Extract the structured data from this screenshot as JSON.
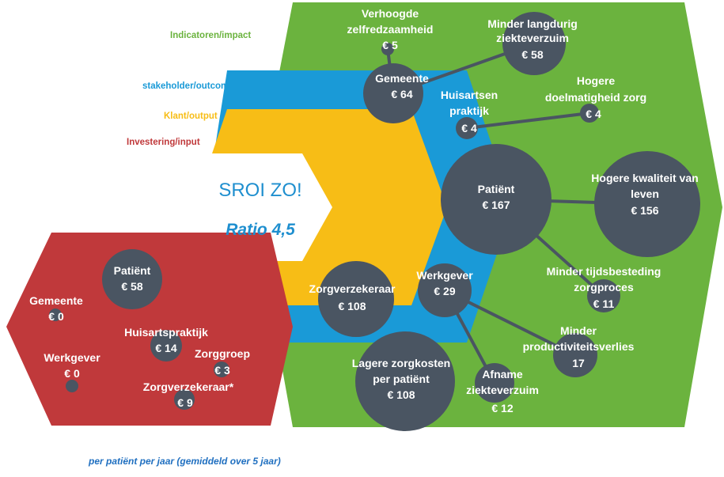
{
  "legend": {
    "impact": "Indicatoren/impact",
    "outcome": "stakeholder/outcome",
    "output": "Klant/output",
    "input": "Investering/input"
  },
  "center": {
    "title": "SROI ZO!",
    "ratio": "Ratio 4,5"
  },
  "footnote": "per patiënt per jaar (gemiddeld over 5 jaar)",
  "colors": {
    "impact_green": "#6bb33e",
    "outcome_blue": "#1a9ad7",
    "output_yellow": "#f7bd16",
    "input_red": "#c0393b",
    "circle_slate": "#4a5562"
  },
  "input": [
    {
      "name": "Patiënt",
      "value": "€ 58"
    },
    {
      "name": "Gemeente",
      "value": "€ 0"
    },
    {
      "name": "Huisartspraktijk",
      "value": "€ 14"
    },
    {
      "name": "Zorggroep",
      "value": "€ 3"
    },
    {
      "name": "Werkgever",
      "value": "€ 0"
    },
    {
      "name": "Zorgverzekeraar*",
      "value": "€ 9"
    }
  ],
  "stakeholders": [
    {
      "name": "Gemeente",
      "value": "€ 64"
    },
    {
      "name": "Huisartsen praktijk",
      "line1": "Huisartsen",
      "line2": "praktijk",
      "value": "€ 4"
    },
    {
      "name": "Patiënt",
      "value": "€ 167"
    },
    {
      "name": "Werkgever",
      "value": "€ 29"
    },
    {
      "name": "Zorgverzekeraar",
      "value": "€ 108"
    }
  ],
  "impacts": [
    {
      "line1": "Verhoogde",
      "line2": "zelfredzaamheid",
      "value": "€ 5"
    },
    {
      "line1": "Minder langdurig",
      "line2": "ziekteverzuim",
      "value": "€ 58"
    },
    {
      "line1": "Hogere",
      "line2": "doelmatigheid  zorg",
      "value": "€ 4"
    },
    {
      "line1": "Hogere kwaliteit van",
      "line2": "leven",
      "value": "€ 156"
    },
    {
      "line1": "Minder tijdsbesteding",
      "line2": "zorgproces",
      "value": "€ 11"
    },
    {
      "line1": "Minder",
      "line2": "productiviteitsverlies",
      "value": "17"
    },
    {
      "line1": "Afname",
      "line2": "ziekteverzuim",
      "value": "€ 12"
    },
    {
      "line1": "Lagere zorgkosten",
      "line2": "per patiënt",
      "value": "€ 108"
    }
  ]
}
